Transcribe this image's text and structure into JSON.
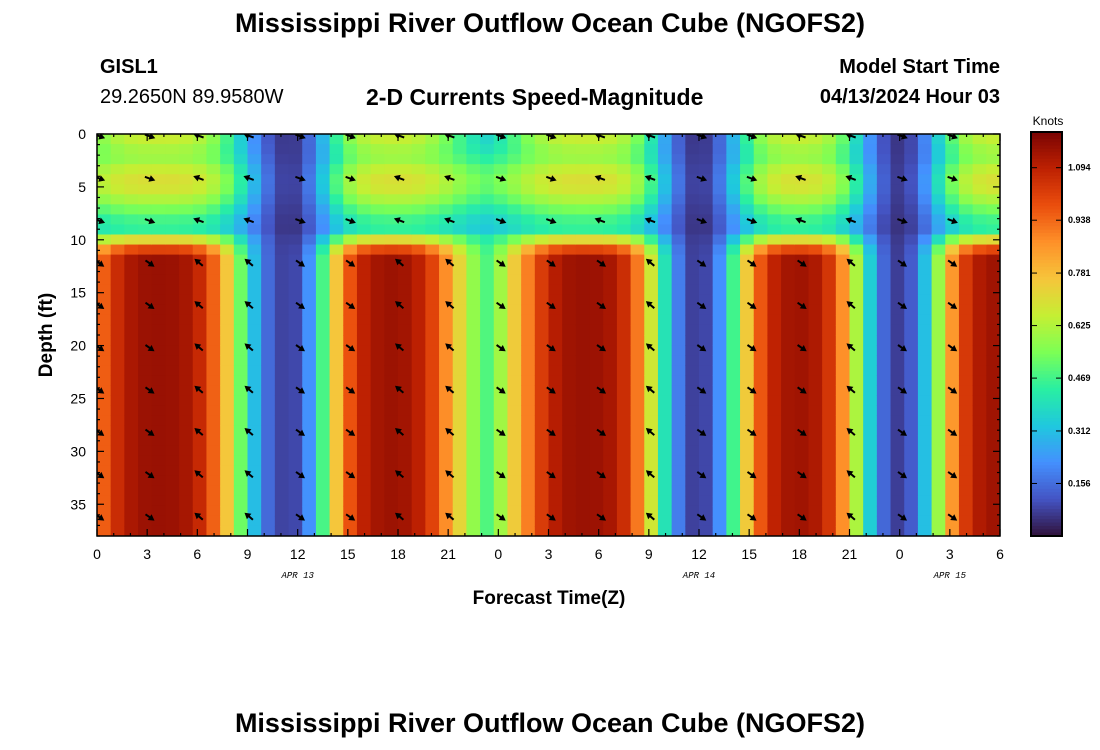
{
  "header": {
    "title": "Mississippi River Outflow Ocean Cube (NGOFS2)",
    "station_id": "GISL1",
    "station_coords": "29.2650N  89.9580W",
    "subtitle": "2-D Currents Speed-Magnitude",
    "model_start_label": "Model Start Time",
    "model_start_value": "04/13/2024 Hour 03"
  },
  "footer": {
    "title": "Mississippi River Outflow Ocean Cube (NGOFS2)"
  },
  "chart_data": {
    "type": "heatmap",
    "title": "2-D Currents Speed-Magnitude",
    "xlabel": "Forecast Time(Z)",
    "ylabel": "Depth (ft)",
    "x_range_hours": [
      0,
      54
    ],
    "ylim": [
      0,
      38
    ],
    "x_tick_labels": [
      "0",
      "3",
      "6",
      "9",
      "12",
      "15",
      "18",
      "21",
      "0",
      "3",
      "6",
      "9",
      "12",
      "15",
      "18",
      "21",
      "0",
      "3",
      "6"
    ],
    "x_tick_hours": [
      0,
      3,
      6,
      9,
      12,
      15,
      18,
      21,
      24,
      27,
      30,
      33,
      36,
      39,
      42,
      45,
      48,
      51,
      54
    ],
    "date_labels": [
      {
        "text": "APR 13",
        "hour": 12
      },
      {
        "text": "APR 14",
        "hour": 36
      },
      {
        "text": "APR 15",
        "hour": 51
      }
    ],
    "y_ticks": [
      0,
      5,
      10,
      15,
      20,
      25,
      30,
      35
    ],
    "y_tick_labels": [
      "0",
      "5",
      "10",
      "15",
      "20",
      "25",
      "30",
      "35"
    ],
    "colorbar": {
      "unit": "Knots",
      "min": 0.0,
      "max": 1.2,
      "tick_values": [
        0.156,
        0.312,
        0.469,
        0.625,
        0.781,
        0.938,
        1.094
      ],
      "tick_labels": [
        "0.156",
        "0.312",
        "0.469",
        "0.625",
        "0.781",
        "0.938",
        "1.094"
      ],
      "colors": [
        "#30123b",
        "#4454c4",
        "#4490fe",
        "#1fc8de",
        "#29efa2",
        "#7cff55",
        "#c5ef33",
        "#f6c53b",
        "#fe9029",
        "#ea4e0d",
        "#be2102",
        "#7a0403"
      ]
    },
    "surface_layer": {
      "depth_max_ft": 9.5,
      "peak_speed": 0.72
    },
    "deep_layer": {
      "depth_min_ft": 9.5,
      "peak_speed": 1.15
    },
    "flood_peak_hours": [
      3.8,
      17,
      29.5,
      41.8,
      53.5
    ],
    "slack_hours": [
      11.5,
      36,
      48
    ],
    "arrow_columns_hours": [
      0,
      3,
      6,
      9,
      12,
      15,
      18,
      21,
      24,
      27,
      30,
      33,
      36,
      39,
      42,
      45,
      48,
      51
    ],
    "arrow_depths_ft": [
      0,
      4,
      8,
      12,
      16,
      20,
      24,
      28,
      32,
      36
    ]
  }
}
